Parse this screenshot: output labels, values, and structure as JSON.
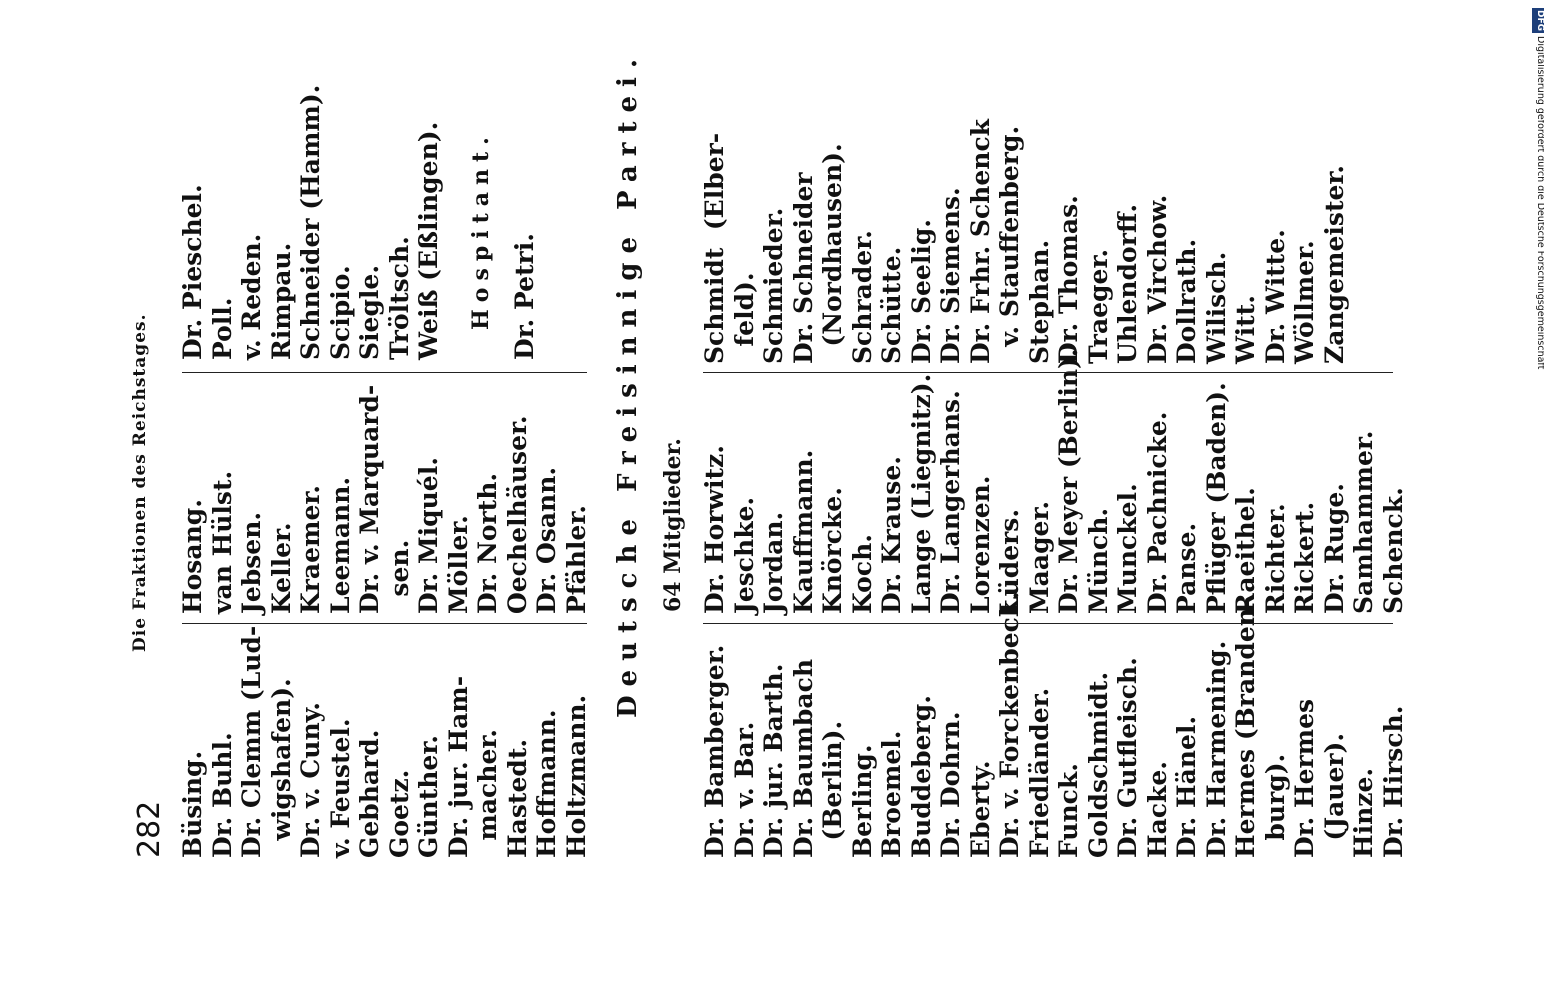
{
  "page_number": "282",
  "running_head": "Die Fraktionen des Reichstages.",
  "columns_top": [
    [
      "Büsing.",
      "Dr. Buhl.",
      "Dr. Clemm (Lud-",
      "  wigshafen).",
      "Dr. v. Cuny.",
      "v. Feustel.",
      "Gebhard.",
      "Goetz.",
      "Günther.",
      "Dr. jur. Ham-",
      "  macher.",
      "Hastedt.",
      "Hoffmann.",
      "Holtzmann."
    ],
    [
      "Hosang.",
      "van Hülst.",
      "Jebsen.",
      "Keller.",
      "Kraemer.",
      "Leemann.",
      "Dr. v. Marquard-",
      "  sen.",
      "Dr. Miquél.",
      "Möller.",
      "Dr. North.",
      "Oechelhäuser.",
      "Dr. Osann.",
      "Pfähler."
    ],
    [
      "Dr. Pieschel.",
      "Poll.",
      "v. Reden.",
      "Rimpau.",
      "Schneider (Hamm).",
      "Scipio.",
      "Siegle.",
      "Tröltsch.",
      "Weiß (Eßlingen)."
    ]
  ],
  "hospitant_title": "Hospitant.",
  "hospitant": [
    "Dr. Petri."
  ],
  "party_title": "Deutsche Freisinnige Partei.",
  "members_count": "64 Mitglieder.",
  "columns_bottom": [
    [
      "Dr. Bamberger.",
      "Dr. v. Bar.",
      "Dr. jur. Barth.",
      "Dr. Baumbach",
      "  (Berlin).",
      "Berling.",
      "Broemel.",
      "Buddeberg.",
      "Dr. Dohrn.",
      "Eberty.",
      "Dr. v. Forckenbeck.",
      "Friedländer.",
      "Funck.",
      "Goldschmidt.",
      "Dr. Gutfleisch.",
      "Hacke.",
      "Dr. Hänel.",
      "Dr. Harmening.",
      "Hermes (Branden-",
      "  burg).",
      "Dr. Hermes",
      "  (Jauer).",
      "Hinze.",
      "Dr. Hirsch."
    ],
    [
      "Dr. Horwitz.",
      "Jeschke.",
      "Jordan.",
      "Kauffmann.",
      "Knörcke.",
      "Koch.",
      "Dr. Krause.",
      "Lange (Liegnitz).",
      "Dr. Langerhans.",
      "Lorenzen.",
      "Lüders.",
      "Maager.",
      "Dr. Meyer (Berlin).",
      "Münch.",
      "Munckel.",
      "Dr. Pachnicke.",
      "Panse.",
      "Pflüger (Baden).",
      "Raeithel.",
      "Richter.",
      "Rickert.",
      "Dr. Ruge.",
      "Samhammer.",
      "Schenck."
    ],
    [
      "Schmidt  (Elber-",
      "  feld).",
      "Schmieder.",
      "Dr. Schneider",
      "  (Nordhausen).",
      "Schrader.",
      "Schütte.",
      "Dr. Seelig.",
      "Dr. Siemens.",
      "Dr. Frhr. Schenck",
      "  v. Stauffenberg.",
      "Stephan.",
      "Dr. Thomas.",
      "Traeger.",
      "Uhlendorff.",
      "Dr. Virchow.",
      "Dollrath.",
      "Wilisch.",
      "Witt.",
      "Dr. Witte.",
      "Wöllmer.",
      "Zangemeister."
    ]
  ],
  "side_notice": "Digitalisierung gefördert durch die Deutsche Forschungsgemeinschaft",
  "logo_text": "DFG"
}
